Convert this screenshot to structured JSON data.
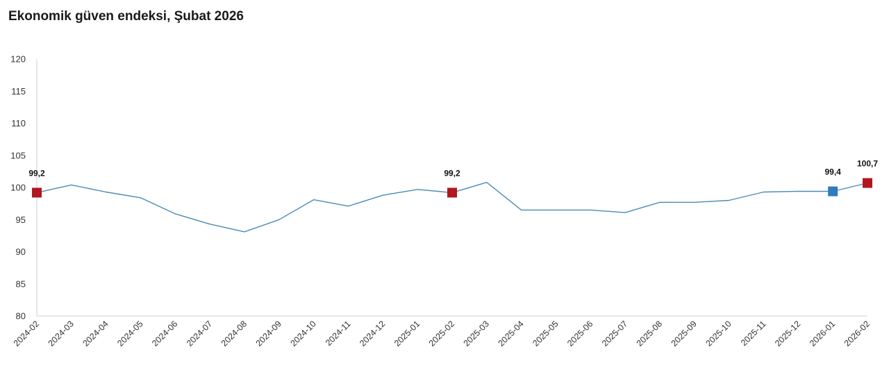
{
  "page": {
    "title": "Ekonomik güven endeksi, Şubat 2026"
  },
  "colors": {
    "line": "#4a8ab5",
    "marker_red": "#b0181e",
    "marker_blue": "#2f7bbd",
    "axis": "#d0d0d0"
  },
  "chart_data": {
    "type": "line",
    "title": "Ekonomik güven endeksi, Şubat 2026",
    "xlabel": "",
    "ylabel": "",
    "ylim": [
      80,
      120
    ],
    "yticks": [
      80,
      85,
      90,
      95,
      100,
      105,
      110,
      115,
      120
    ],
    "grid": false,
    "categories": [
      "2024-02",
      "2024-03",
      "2024-04",
      "2024-05",
      "2024-06",
      "2024-07",
      "2024-08",
      "2024-09",
      "2024-10",
      "2024-11",
      "2024-12",
      "2025-01",
      "2025-02",
      "2025-03",
      "2025-04",
      "2025-05",
      "2025-06",
      "2025-07",
      "2025-08",
      "2025-09",
      "2025-10",
      "2025-11",
      "2025-12",
      "2026-01",
      "2026-02"
    ],
    "series": [
      {
        "values": [
          99.2,
          100.4,
          99.3,
          98.4,
          95.9,
          94.3,
          93.1,
          95.0,
          98.1,
          97.1,
          98.8,
          99.7,
          99.2,
          100.8,
          96.5,
          96.5,
          96.5,
          96.1,
          97.7,
          97.7,
          98.0,
          99.3,
          99.4,
          99.4,
          100.7
        ]
      }
    ],
    "highlights": [
      {
        "category": "2024-02",
        "value": 99.2,
        "label": "99,2",
        "color": "#b0181e"
      },
      {
        "category": "2025-02",
        "value": 99.2,
        "label": "99,2",
        "color": "#b0181e"
      },
      {
        "category": "2026-01",
        "value": 99.4,
        "label": "99,4",
        "color": "#2f7bbd"
      },
      {
        "category": "2026-02",
        "value": 100.7,
        "label": "100,7",
        "color": "#b0181e"
      }
    ]
  }
}
